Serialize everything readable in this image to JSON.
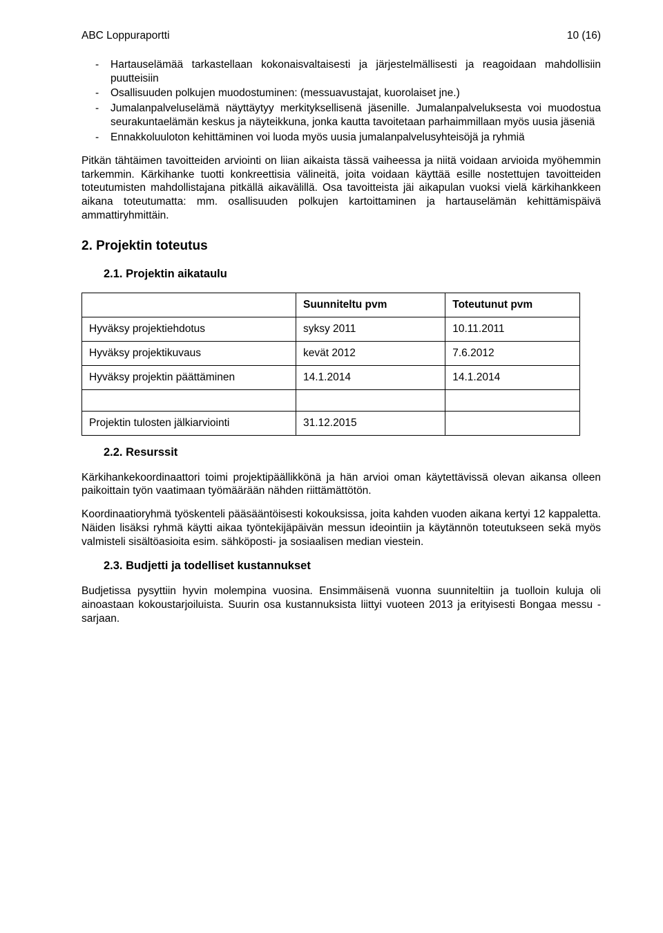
{
  "header": {
    "doc_title": "ABC Loppuraportti",
    "page_indicator": "10 (16)"
  },
  "bullets1": [
    "Hartauselämää tarkastellaan kokonaisvaltaisesti ja järjestelmällisesti ja reagoidaan mahdollisiin puutteisiin",
    "Osallisuuden polkujen muodostuminen: (messuavustajat, kuorolaiset jne.)",
    "Jumalanpalveluselämä näyttäytyy merkityksellisenä jäsenille. Jumalanpalveluksesta voi muodostua seurakuntaelämän keskus ja näyteikkuna, jonka kautta tavoitetaan parhaimmillaan myös uusia jäseniä",
    "Ennakkoluuloton kehittäminen voi luoda myös uusia jumalanpalvelusyhteisöjä ja ryhmiä"
  ],
  "para1": "Pitkän tähtäimen tavoitteiden arviointi on liian aikaista tässä vaiheessa ja niitä voidaan arvioida myöhemmin tarkemmin. Kärkihanke tuotti konkreettisia välineitä, joita voidaan käyttää esille nostettujen tavoitteiden toteutumisten mahdollistajana pitkällä aikavälillä. Osa tavoitteista jäi aikapulan vuoksi vielä kärkihankkeen aikana toteutumatta: mm. osallisuuden polkujen kartoittaminen ja hartauselämän kehittämispäivä ammattiryhmittäin.",
  "sec2": {
    "title": "2. Projektin toteutus",
    "sec21": {
      "title": "2.1. Projektin aikataulu",
      "table": {
        "columns": [
          "",
          "Suunniteltu pvm",
          "Toteutunut pvm"
        ],
        "rows": [
          [
            "Hyväksy projektiehdotus",
            "syksy 2011",
            "10.11.2011"
          ],
          [
            "Hyväksy projektikuvaus",
            "kevät 2012",
            "7.6.2012"
          ],
          [
            "Hyväksy projektin päättäminen",
            "14.1.2014",
            "14.1.2014"
          ]
        ],
        "tail": [
          "Projektin tulosten jälkiarviointi",
          "31.12.2015",
          ""
        ]
      }
    },
    "sec22": {
      "title": "2.2. Resurssit",
      "p1": "Kärkihankekoordinaattori toimi projektipäällikkönä ja hän arvioi oman käytettävissä olevan aikansa olleen paikoittain työn vaatimaan työmäärään nähden riittämättötön.",
      "p2": "Koordinaatioryhmä työskenteli pääsääntöisesti kokouksissa, joita kahden vuoden aikana kertyi 12 kappaletta. Näiden lisäksi ryhmä käytti aikaa työntekijäpäivän messun ideointiin ja käytännön toteutukseen sekä myös valmisteli sisältöasioita esim. sähköposti- ja sosiaalisen median viestein."
    },
    "sec23": {
      "title": "2.3. Budjetti ja todelliset kustannukset",
      "p1": "Budjetissa pysyttiin hyvin molempina vuosina. Ensimmäisenä vuonna suunniteltiin ja tuolloin kuluja oli ainoastaan kokoustarjoiluista. Suurin osa kustannuksista liittyi vuoteen 2013 ja erityisesti Bongaa messu -sarjaan."
    }
  }
}
